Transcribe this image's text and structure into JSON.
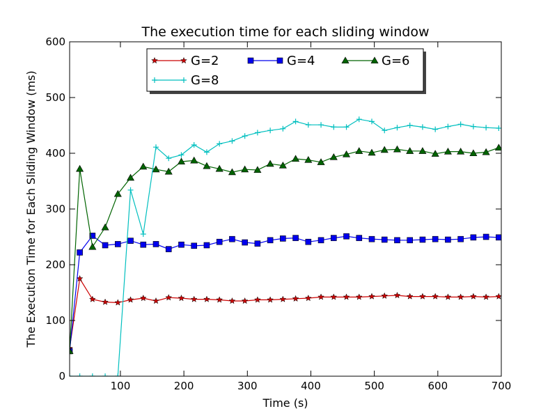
{
  "chart_data": {
    "type": "line",
    "title": "The execution time for each sliding window",
    "xlabel": "Time (s)",
    "ylabel": "The Execution Time for Each Sliding Window (ms)",
    "xlim": [
      20,
      700
    ],
    "ylim": [
      0,
      600
    ],
    "xticks": [
      100,
      200,
      300,
      400,
      500,
      600,
      700
    ],
    "yticks": [
      0,
      100,
      200,
      300,
      400,
      500,
      600
    ],
    "grid": false,
    "legend_position": "top-center",
    "series": [
      {
        "name": "G=2",
        "color": "#cc0000",
        "marker": "star",
        "x": [
          20,
          36,
          56,
          76,
          96,
          116,
          136,
          156,
          176,
          196,
          216,
          236,
          256,
          276,
          296,
          316,
          336,
          356,
          376,
          396,
          416,
          436,
          456,
          476,
          496,
          516,
          536,
          556,
          576,
          596,
          616,
          636,
          656,
          676,
          696
        ],
        "y": [
          50,
          175,
          138,
          133,
          132,
          137,
          140,
          135,
          141,
          140,
          138,
          138,
          137,
          135,
          135,
          137,
          137,
          138,
          139,
          140,
          142,
          142,
          142,
          142,
          143,
          144,
          145,
          143,
          143,
          143,
          142,
          142,
          143,
          142,
          143
        ]
      },
      {
        "name": "G=4",
        "color": "#0000ee",
        "marker": "square",
        "x": [
          20,
          36,
          56,
          76,
          96,
          116,
          136,
          156,
          176,
          196,
          216,
          236,
          256,
          276,
          296,
          316,
          336,
          356,
          376,
          396,
          416,
          436,
          456,
          476,
          496,
          516,
          536,
          556,
          576,
          596,
          616,
          636,
          656,
          676,
          696
        ],
        "y": [
          45,
          222,
          252,
          235,
          237,
          243,
          236,
          237,
          228,
          236,
          234,
          235,
          241,
          246,
          240,
          238,
          244,
          247,
          248,
          241,
          244,
          248,
          251,
          248,
          246,
          245,
          244,
          244,
          245,
          246,
          245,
          246,
          249,
          250,
          249
        ]
      },
      {
        "name": "G=6",
        "color": "#006400",
        "marker": "triangle",
        "x": [
          20,
          36,
          56,
          76,
          96,
          116,
          136,
          156,
          176,
          196,
          216,
          236,
          256,
          276,
          296,
          316,
          336,
          356,
          376,
          396,
          416,
          436,
          456,
          476,
          496,
          516,
          536,
          556,
          576,
          596,
          616,
          636,
          656,
          676,
          696
        ],
        "y": [
          45,
          372,
          232,
          267,
          327,
          356,
          376,
          371,
          367,
          385,
          387,
          377,
          372,
          366,
          371,
          370,
          381,
          378,
          390,
          388,
          384,
          393,
          398,
          404,
          401,
          406,
          407,
          404,
          404,
          399,
          403,
          403,
          400,
          402,
          410
        ]
      },
      {
        "name": "G=8",
        "color": "#00bfbf",
        "marker": "plus",
        "x": [
          20,
          36,
          56,
          76,
          96,
          116,
          136,
          156,
          176,
          196,
          216,
          236,
          256,
          276,
          296,
          316,
          336,
          356,
          376,
          396,
          416,
          436,
          456,
          476,
          496,
          516,
          536,
          556,
          576,
          596,
          616,
          636,
          656,
          676,
          696
        ],
        "y": [
          0,
          0,
          0,
          0,
          0,
          334,
          255,
          411,
          391,
          397,
          415,
          402,
          417,
          422,
          431,
          437,
          441,
          444,
          457,
          451,
          451,
          447,
          447,
          461,
          457,
          441,
          446,
          450,
          447,
          443,
          448,
          452,
          448,
          446,
          445
        ]
      }
    ]
  }
}
